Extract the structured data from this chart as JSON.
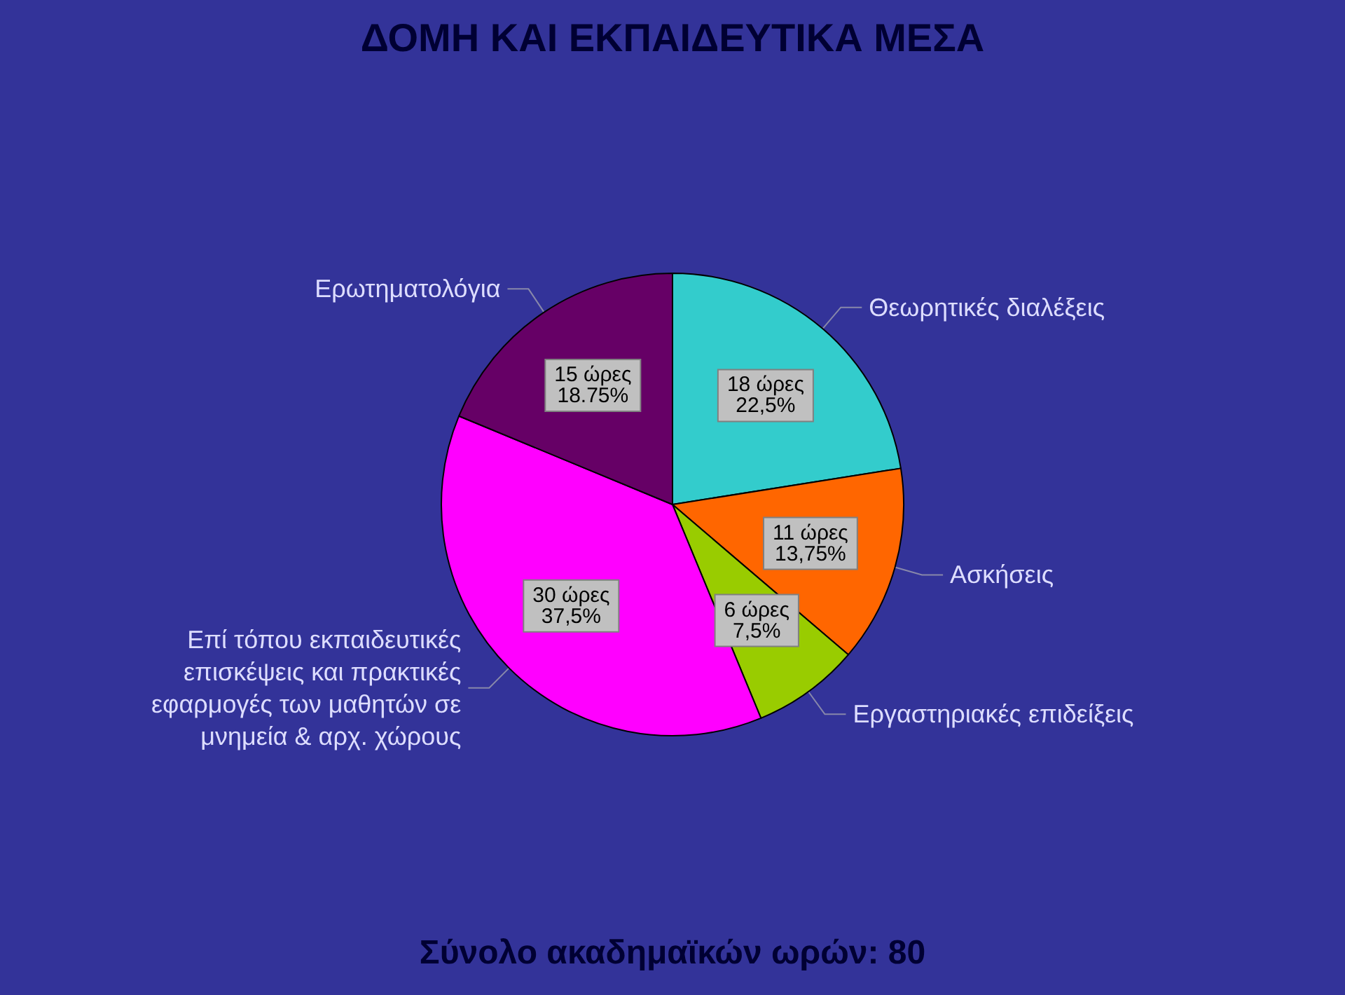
{
  "chart_data": {
    "type": "pie",
    "title": "ΔΟΜΗ ΚΑΙ ΕΚΠΑΙΔΕΥΤΙΚΑ ΜΕΣΑ",
    "categories": [
      "Θεωρητικές διαλέξεις",
      "Ασκήσεις",
      "Εργαστηριακές επιδείξεις",
      "Επί τόπου εκπαιδευτικές επισκέψεις και πρακτικές εφαρμογές των μαθητών σε μνημεία & αρχ. χώρους",
      "Ερωτηματολόγια"
    ],
    "values": [
      18,
      11,
      6,
      30,
      15
    ],
    "colors": [
      "#33cccc",
      "#ff6600",
      "#99cc00",
      "#ff00ff",
      "#660066"
    ],
    "value_labels": [
      "18 ώρες\n22,5%",
      "11 ώρες\n13,75%",
      "6 ώρες\n7,5%",
      "30 ώρες\n37,5%",
      "15 ώρες\n18.75%"
    ],
    "annotations": [
      "Σύνολο ακαδημαϊκών ωρών: 80"
    ]
  }
}
